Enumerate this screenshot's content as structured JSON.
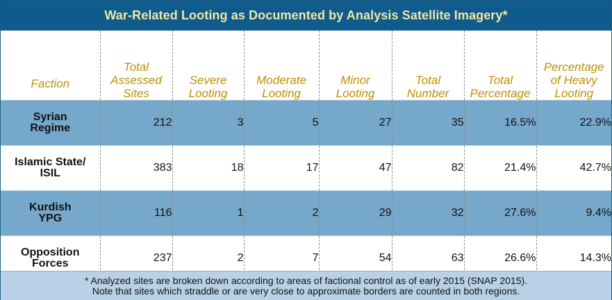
{
  "title": "War-Related Looting as Documented by Analysis Satellite Imagery*",
  "colors": {
    "title_background": "#0e5b8c",
    "title_text": "#f2e7a6",
    "header_text": "#bf9000",
    "row_blue": "#76a8cb",
    "footnote_background": "#b8d1e6"
  },
  "columns": [
    {
      "lines": [
        "Faction"
      ]
    },
    {
      "lines": [
        "Total",
        "Assessed",
        "Sites"
      ]
    },
    {
      "lines": [
        "Severe",
        "Looting"
      ]
    },
    {
      "lines": [
        "Moderate",
        "Looting"
      ]
    },
    {
      "lines": [
        "Minor",
        "Looting"
      ]
    },
    {
      "lines": [
        "Total",
        "Number"
      ]
    },
    {
      "lines": [
        "Total",
        "Percentage"
      ]
    },
    {
      "lines": [
        "Percentage",
        "of Heavy",
        "Looting"
      ]
    }
  ],
  "rows": [
    {
      "faction": [
        "Syrian",
        "Regime"
      ],
      "values": [
        "212",
        "3",
        "5",
        "27",
        "35",
        "16.5%",
        "22.9%"
      ],
      "shade": "blue"
    },
    {
      "faction": [
        "Islamic State/",
        "ISIL"
      ],
      "values": [
        "383",
        "18",
        "17",
        "47",
        "82",
        "21.4%",
        "42.7%"
      ],
      "shade": "white"
    },
    {
      "faction": [
        "Kurdish",
        "YPG"
      ],
      "values": [
        "116",
        "1",
        "2",
        "29",
        "32",
        "27.6%",
        "9.4%"
      ],
      "shade": "blue"
    },
    {
      "faction": [
        "Opposition",
        "Forces"
      ],
      "values": [
        "237",
        "2",
        "7",
        "54",
        "63",
        "26.6%",
        "14.3%"
      ],
      "shade": "white"
    }
  ],
  "footnote": [
    "* Analyzed sites are broken down according to areas of factional control as of early 2015 (SNAP 2015).",
    "Note that sites which straddle or are very close to approximate borders are counted in both regions."
  ]
}
